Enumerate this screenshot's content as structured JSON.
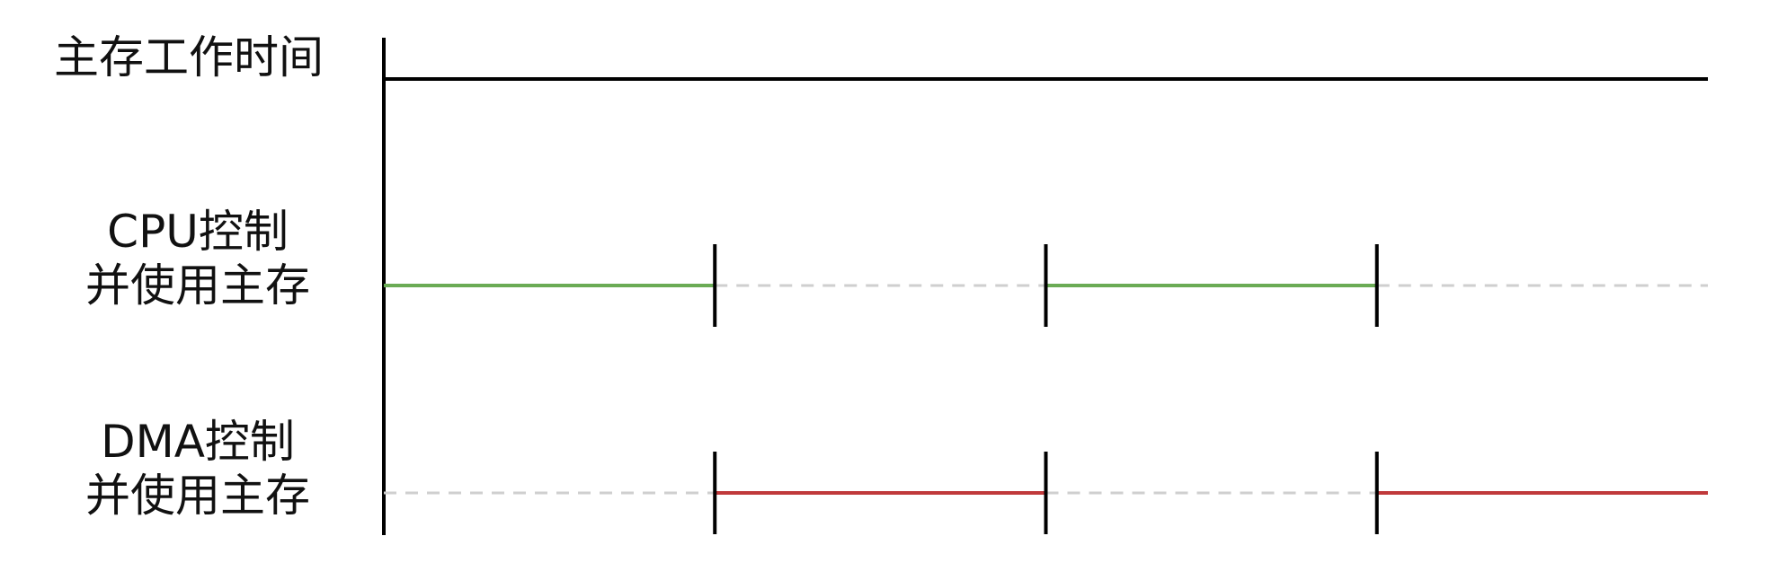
{
  "labels": {
    "main_memory_time": "主存工作时间",
    "cpu_line1": "CPU控制",
    "cpu_line2": "并使用主存",
    "dma_line1": "DMA控制",
    "dma_line2": "并使用主存"
  },
  "timeline": {
    "segments": 4,
    "cpu_active": [
      true,
      false,
      true,
      false
    ],
    "dma_active": [
      false,
      true,
      false,
      true
    ]
  },
  "colors": {
    "axis": "#000000",
    "cpu_active": "#6aab55",
    "dma_active": "#c0393b",
    "idle": "#cfcfcf"
  }
}
